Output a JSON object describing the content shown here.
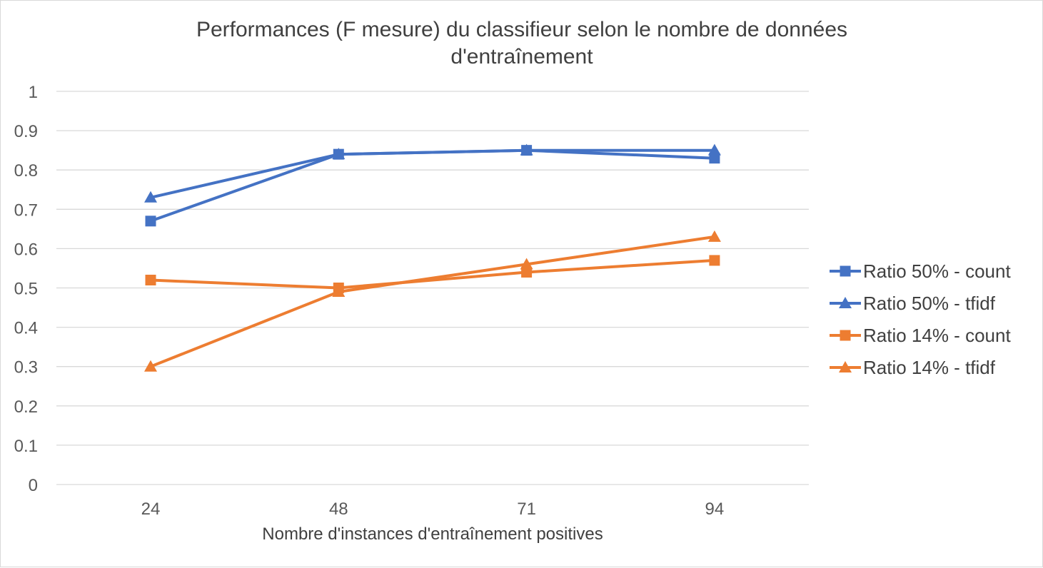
{
  "chart_data": {
    "type": "line",
    "title_lines": [
      "Performances (F mesure) du classifieur selon le nombre de données",
      "d'entraînement"
    ],
    "xlabel": "Nombre d'instances d'entraînement positives",
    "ylabel": "",
    "categories": [
      "24",
      "48",
      "71",
      "94"
    ],
    "ylim": [
      0,
      1
    ],
    "yticks": [
      "0",
      "0.1",
      "0.2",
      "0.3",
      "0.4",
      "0.5",
      "0.6",
      "0.7",
      "0.8",
      "0.9",
      "1"
    ],
    "grid": "horizontal",
    "legend_position": "right",
    "series": [
      {
        "name": "Ratio 50% - count",
        "values": [
          0.67,
          0.84,
          0.85,
          0.83
        ],
        "color": "#4472c4",
        "marker": "square"
      },
      {
        "name": "Ratio 50% - tfidf",
        "values": [
          0.73,
          0.84,
          0.85,
          0.85
        ],
        "color": "#4472c4",
        "marker": "triangle"
      },
      {
        "name": "Ratio 14% - count",
        "values": [
          0.52,
          0.5,
          0.54,
          0.57
        ],
        "color": "#ed7d31",
        "marker": "square"
      },
      {
        "name": "Ratio 14% - tfidf",
        "values": [
          0.3,
          0.49,
          0.56,
          0.63
        ],
        "color": "#ed7d31",
        "marker": "triangle"
      }
    ]
  }
}
